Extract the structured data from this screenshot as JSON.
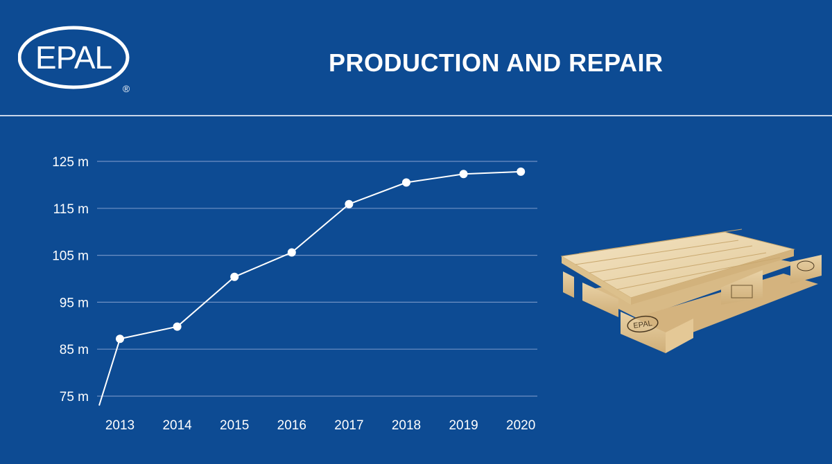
{
  "header": {
    "logo_text": "EPAL",
    "registered_mark": "®",
    "title": "PRODUCTION AND REPAIR"
  },
  "pallet_image": {
    "description_icon": "pallet-icon",
    "stamp_text": "EPAL"
  },
  "colors": {
    "background": "#0d4b93",
    "line": "#ffffff",
    "grid": "#6f91c4"
  },
  "chart_data": {
    "type": "line",
    "title": "PRODUCTION AND REPAIR",
    "xlabel": "",
    "ylabel": "",
    "categories": [
      "2013",
      "2014",
      "2015",
      "2016",
      "2017",
      "2018",
      "2019",
      "2020"
    ],
    "values": [
      87.2,
      89.8,
      100.4,
      105.6,
      115.9,
      120.5,
      122.3,
      122.8
    ],
    "ylim": [
      75,
      125
    ],
    "yticks": [
      75,
      85,
      95,
      105,
      115,
      125
    ],
    "ytick_labels": [
      "75 m",
      "85 m",
      "95 m",
      "105 m",
      "115 m",
      "125 m"
    ],
    "line_start_value": 73,
    "grid": true,
    "legend": "none"
  }
}
